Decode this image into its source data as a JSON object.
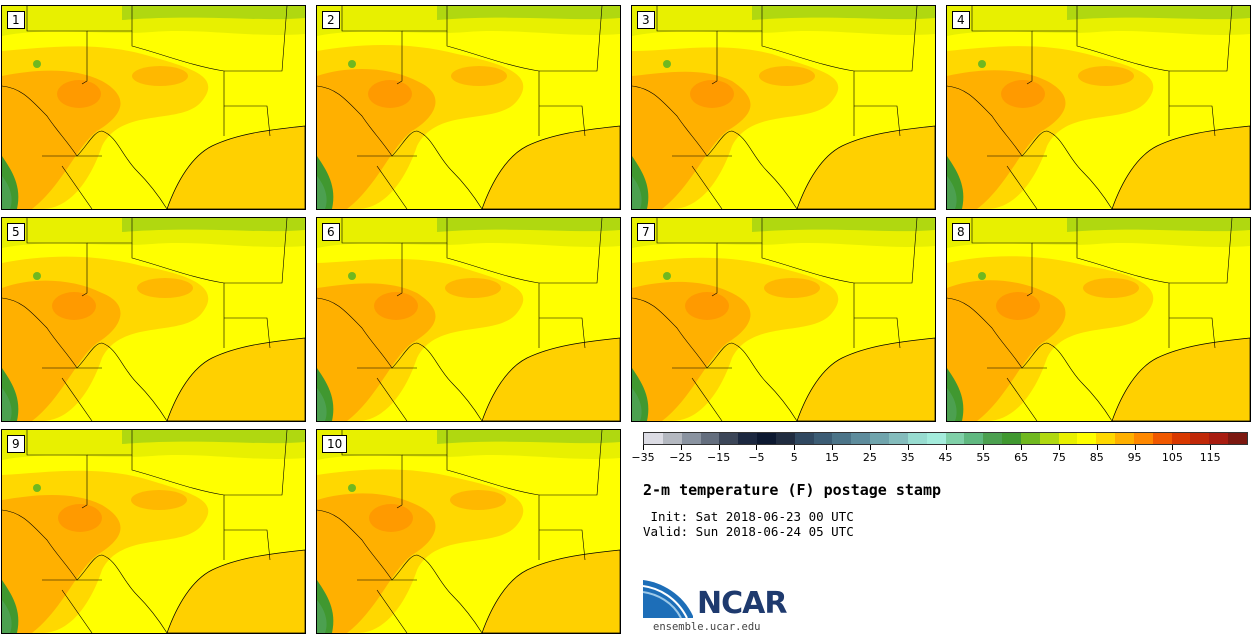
{
  "members": [
    {
      "label": "1"
    },
    {
      "label": "2"
    },
    {
      "label": "3"
    },
    {
      "label": "4"
    },
    {
      "label": "5"
    },
    {
      "label": "6"
    },
    {
      "label": "7"
    },
    {
      "label": "8"
    },
    {
      "label": "9"
    },
    {
      "label": "10"
    }
  ],
  "colorbar": {
    "colors": [
      "#dcdce4",
      "#b4b8c0",
      "#8a93a0",
      "#646e7e",
      "#3c4658",
      "#1c2840",
      "#0c1830",
      "#202c40",
      "#304860",
      "#3c5c74",
      "#4c7488",
      "#5e8c9c",
      "#70a4ac",
      "#84bcbc",
      "#98dcd0",
      "#a4ecdc",
      "#80d0a8",
      "#60b880",
      "#4ca050",
      "#409830",
      "#70b820",
      "#b0d810",
      "#e8f000",
      "#ffff00",
      "#ffd800",
      "#ffb000",
      "#ff8800",
      "#f05800",
      "#d83800",
      "#c02808",
      "#a81c10",
      "#7c1810"
    ],
    "tick_labels": [
      "−35",
      "−25",
      "−15",
      "−5",
      "5",
      "15",
      "25",
      "35",
      "45",
      "55",
      "65",
      "75",
      "85",
      "95",
      "105",
      "115"
    ]
  },
  "title": "2-m temperature (F) postage stamp",
  "init_line": " Init: Sat 2018-06-23 00 UTC",
  "valid_line": "Valid: Sun 2018-06-24 05 UTC",
  "logo": {
    "name": "NCAR",
    "url": "ensemble.ucar.edu"
  }
}
